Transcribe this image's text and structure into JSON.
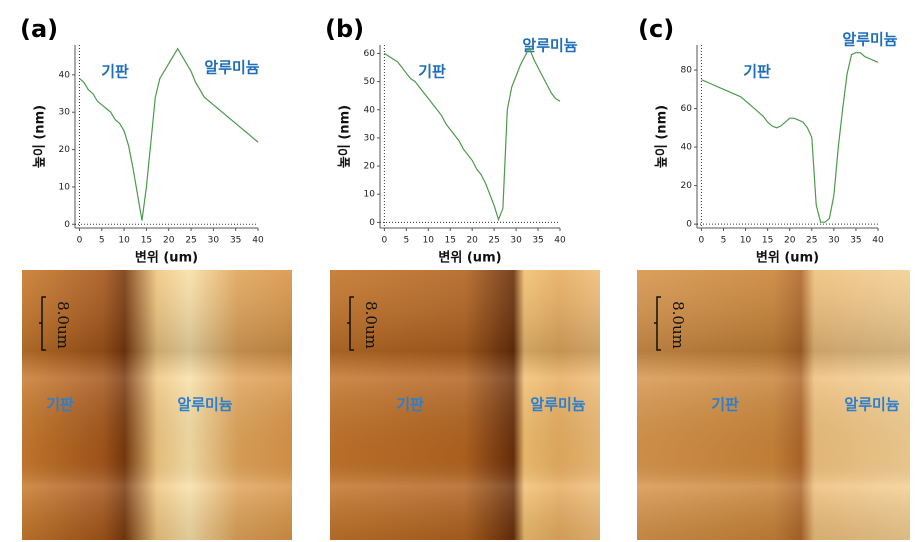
{
  "panels": [
    {
      "label": "(a)",
      "image_labels": [
        "기판",
        "알루미늄"
      ],
      "scale_bar": "8.0um"
    },
    {
      "label": "(b)",
      "image_labels": [
        "기판",
        "알루미늄"
      ],
      "scale_bar": "8.0um"
    },
    {
      "label": "(c)",
      "image_labels": [
        "기판",
        "알루미늄"
      ],
      "scale_bar": "8.0um"
    }
  ],
  "chart_data": [
    {
      "type": "line",
      "x_label": "변위 (um)",
      "y_label": "높이 (nm)",
      "annotations": [
        "기판",
        "알루미늄"
      ],
      "x": [
        0,
        1,
        2,
        3,
        4,
        5,
        6,
        7,
        8,
        9,
        10,
        11,
        12,
        13,
        14,
        15,
        16,
        17,
        18,
        19,
        20,
        21,
        22,
        23,
        24,
        25,
        26,
        27,
        28,
        29,
        30,
        31,
        32,
        33,
        34,
        35,
        36,
        37,
        38,
        39,
        40
      ],
      "values": [
        39,
        38,
        36,
        35,
        33,
        32,
        31,
        30,
        28,
        27,
        25,
        21,
        15,
        8,
        1,
        10,
        22,
        34,
        39,
        41,
        43,
        45,
        47,
        45,
        43,
        41,
        38,
        36,
        34,
        33,
        32,
        31,
        30,
        29,
        28,
        27,
        26,
        25,
        24,
        23,
        22
      ],
      "color": "#4c9a4c",
      "xlim": [
        -1,
        40
      ],
      "ylim": [
        -1,
        48
      ],
      "xticks": [
        0,
        5,
        10,
        15,
        20,
        25,
        30,
        35,
        40
      ],
      "yticks": [
        0,
        10,
        20,
        30,
        40
      ]
    },
    {
      "type": "line",
      "x_label": "변위 (um)",
      "y_label": "높이 (nm)",
      "annotations": [
        "기판",
        "알루미늄"
      ],
      "x": [
        0,
        1,
        2,
        3,
        4,
        5,
        6,
        7,
        8,
        9,
        10,
        11,
        12,
        13,
        14,
        15,
        16,
        17,
        18,
        19,
        20,
        21,
        22,
        23,
        24,
        25,
        26,
        27,
        28,
        29,
        30,
        31,
        32,
        33,
        34,
        35,
        36,
        37,
        38,
        39,
        40
      ],
      "values": [
        60,
        59,
        58,
        57,
        55,
        53,
        51,
        50,
        48,
        46,
        44,
        42,
        40,
        38,
        35,
        33,
        31,
        29,
        26,
        24,
        22,
        19,
        17,
        14,
        10,
        6,
        1,
        5,
        40,
        48,
        52,
        56,
        59,
        62,
        58,
        55,
        52,
        49,
        46,
        44,
        43
      ],
      "color": "#4c9a4c",
      "xlim": [
        -1,
        40
      ],
      "ylim": [
        -2,
        63
      ],
      "xticks": [
        0,
        5,
        10,
        15,
        20,
        25,
        30,
        35,
        40
      ],
      "yticks": [
        0,
        10,
        20,
        30,
        40,
        50,
        60
      ]
    },
    {
      "type": "line",
      "x_label": "변위 (um)",
      "y_label": "높이 (nm)",
      "annotations": [
        "기판",
        "알루미늄"
      ],
      "x": [
        0,
        1,
        2,
        3,
        4,
        5,
        6,
        7,
        8,
        9,
        10,
        11,
        12,
        13,
        14,
        15,
        16,
        17,
        18,
        19,
        20,
        21,
        22,
        23,
        24,
        25,
        26,
        27,
        28,
        29,
        30,
        31,
        32,
        33,
        34,
        35,
        36,
        37,
        38,
        39,
        40
      ],
      "values": [
        75,
        74,
        73,
        72,
        71,
        70,
        69,
        68,
        67,
        66,
        64,
        62,
        60,
        58,
        56,
        53,
        51,
        50,
        51,
        53,
        55,
        55,
        54,
        53,
        50,
        45,
        10,
        1,
        1,
        3,
        15,
        40,
        60,
        78,
        88,
        89,
        89,
        87,
        86,
        85,
        84
      ],
      "color": "#4c9a4c",
      "xlim": [
        -1,
        40
      ],
      "ylim": [
        -2,
        93
      ],
      "xticks": [
        0,
        5,
        10,
        15,
        20,
        25,
        30,
        35,
        40
      ],
      "yticks": [
        0,
        20,
        40,
        60,
        80
      ]
    }
  ]
}
